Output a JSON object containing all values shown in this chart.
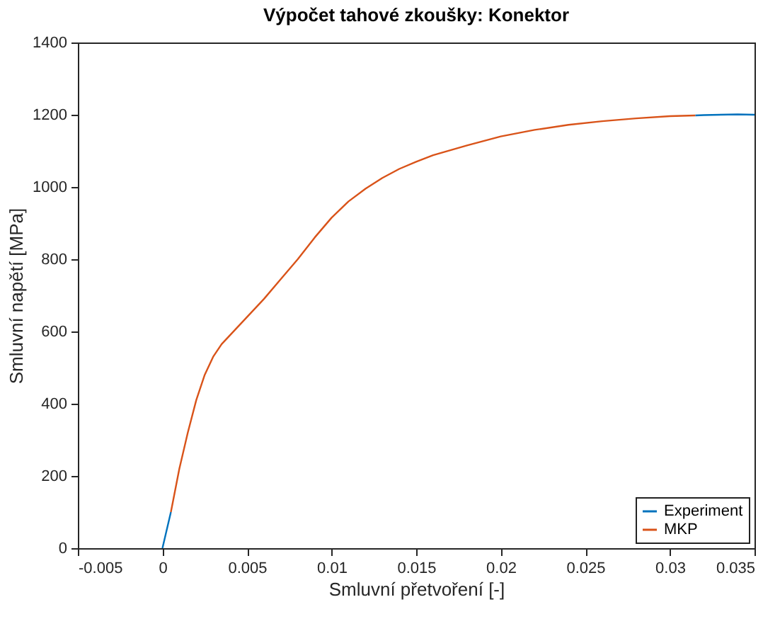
{
  "chart_data": {
    "type": "line",
    "title": "Výpočet tahové zkoušky: Konektor",
    "xlabel": "Smluvní přetvoření [-]",
    "ylabel": "Smluvní napětí [MPa]",
    "xlim": [
      -0.005,
      0.035
    ],
    "xticks": [
      -0.005,
      0,
      0.005,
      0.01,
      0.015,
      0.02,
      0.025,
      0.03,
      0.035
    ],
    "ylim": [
      0,
      1400
    ],
    "yticks": [
      0,
      200,
      400,
      600,
      800,
      1000,
      1200,
      1400
    ],
    "grid": false,
    "legend": "bottom right",
    "line_style": "solid",
    "marker": "none",
    "series": [
      {
        "name": "Experiment",
        "color": "#0072bd",
        "x": [
          0,
          0.0005,
          0.01,
          0.0315,
          0.032,
          0.034,
          0.035
        ],
        "values": [
          0,
          100,
          null,
          1198,
          1199,
          1201,
          1200
        ]
      },
      {
        "name": "MKP",
        "color": "#d95319",
        "x": [
          0.0005,
          0.001,
          0.0015,
          0.002,
          0.0025,
          0.003,
          0.0035,
          0.004,
          0.005,
          0.006,
          0.007,
          0.008,
          0.009,
          0.01,
          0.011,
          0.012,
          0.013,
          0.014,
          0.015,
          0.016,
          0.018,
          0.02,
          0.022,
          0.024,
          0.026,
          0.028,
          0.03,
          0.0315
        ],
        "values": [
          100,
          220,
          320,
          410,
          480,
          530,
          565,
          590,
          640,
          690,
          745,
          800,
          860,
          915,
          960,
          995,
          1025,
          1050,
          1070,
          1088,
          1115,
          1140,
          1158,
          1172,
          1182,
          1190,
          1196,
          1198
        ]
      }
    ]
  }
}
